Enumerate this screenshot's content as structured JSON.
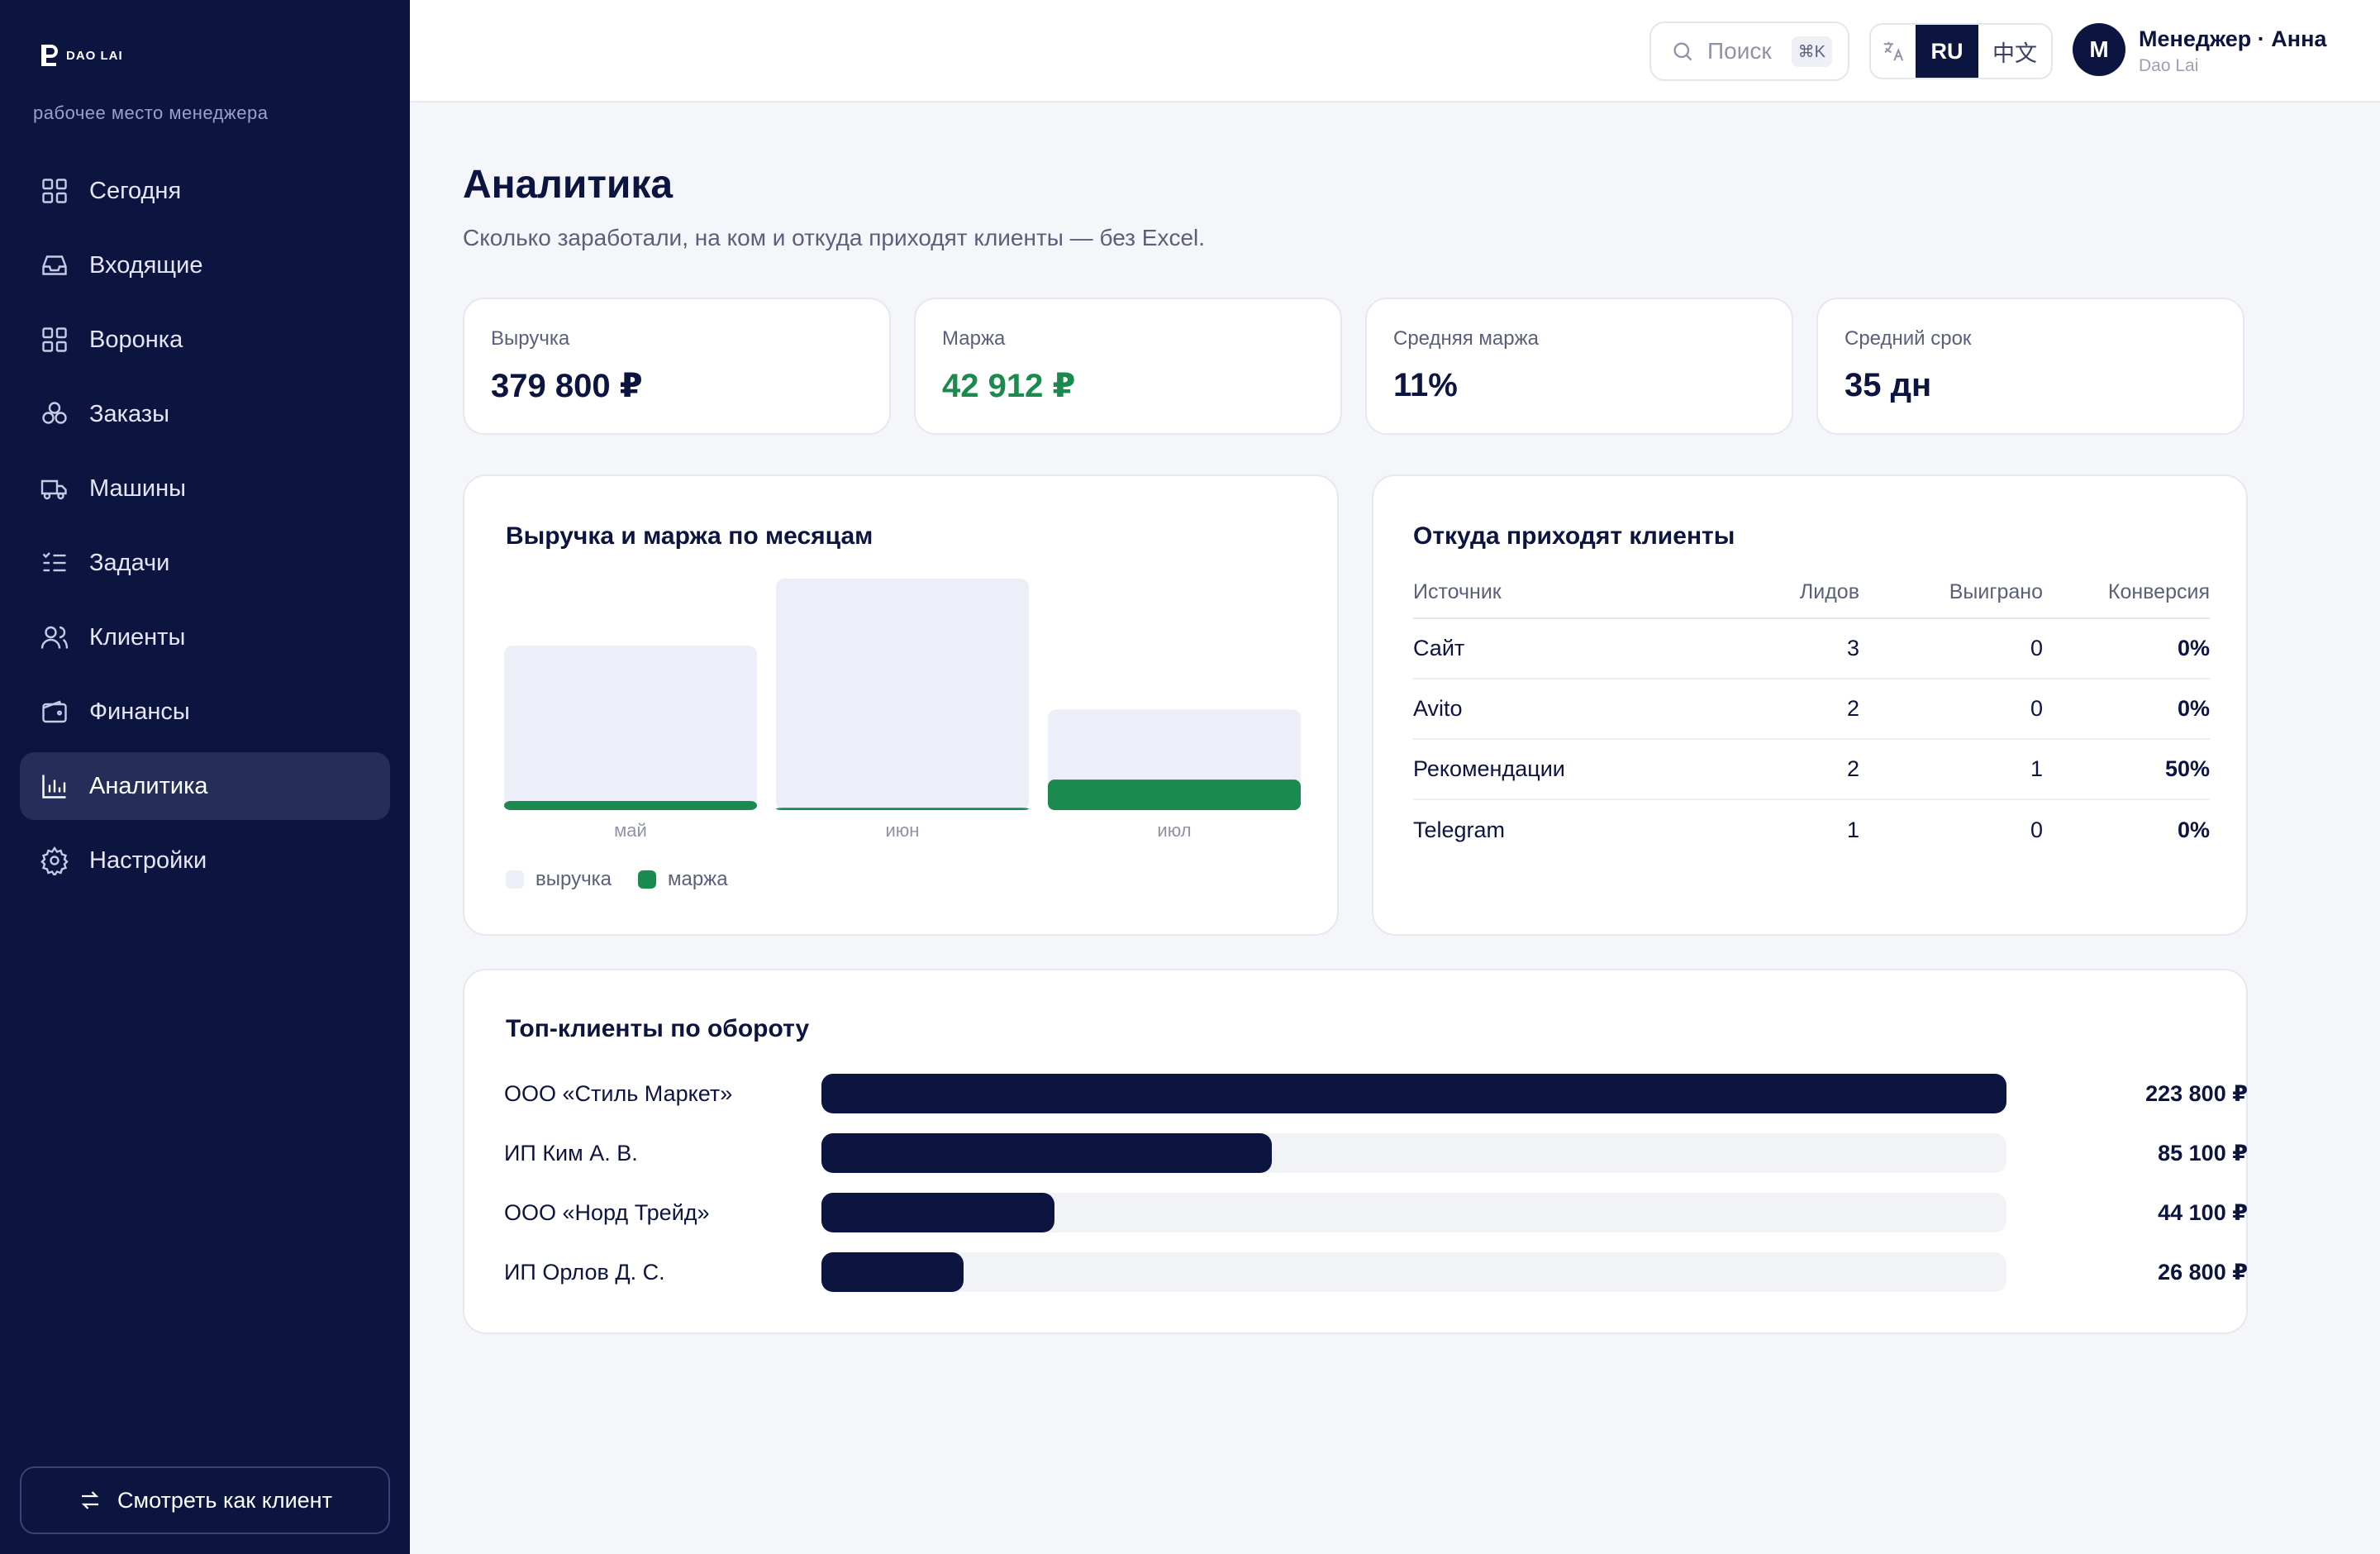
{
  "app": {
    "logo_text": "DAO LAI",
    "subtitle": "рабочее место менеджера"
  },
  "sidebar": {
    "items": [
      {
        "label": "Сегодня",
        "icon": "grid-icon"
      },
      {
        "label": "Входящие",
        "icon": "inbox-icon"
      },
      {
        "label": "Воронка",
        "icon": "grid-icon"
      },
      {
        "label": "Заказы",
        "icon": "boxes-icon"
      },
      {
        "label": "Машины",
        "icon": "truck-icon"
      },
      {
        "label": "Задачи",
        "icon": "checklist-icon"
      },
      {
        "label": "Клиенты",
        "icon": "users-icon"
      },
      {
        "label": "Финансы",
        "icon": "wallet-icon"
      },
      {
        "label": "Аналитика",
        "icon": "bar-chart-icon",
        "active": true
      },
      {
        "label": "Настройки",
        "icon": "gear-icon"
      }
    ],
    "view_as_client": "Смотреть как клиент"
  },
  "header": {
    "search_placeholder": "Поиск",
    "search_shortcut": "⌘K",
    "lang_active": "RU",
    "lang_other": "中文",
    "avatar_letter": "М",
    "user_name": "Менеджер · Анна",
    "user_sub": "Dao Lai"
  },
  "page": {
    "title": "Аналитика",
    "subtitle": "Сколько заработали, на ком и откуда приходят клиенты — без Excel."
  },
  "kpis": [
    {
      "label": "Выручка",
      "value": "379 800 ₽"
    },
    {
      "label": "Маржа",
      "value": "42 912 ₽",
      "accent": true
    },
    {
      "label": "Средняя маржа",
      "value": "11%"
    },
    {
      "label": "Средний срок",
      "value": "35 дн"
    }
  ],
  "revenue_chart": {
    "title": "Выручка и маржа по месяцам",
    "legend_revenue": "выручка",
    "legend_margin": "маржа"
  },
  "chart_data": {
    "type": "bar",
    "categories": [
      "май",
      "июн",
      "июл"
    ],
    "series": [
      {
        "name": "выручка",
        "values": [
          108000,
          152000,
          66000
        ],
        "color": "#eceff8"
      },
      {
        "name": "маржа",
        "values": [
          6000,
          1500,
          20000
        ],
        "color": "#1b8a4e"
      }
    ],
    "ylim": [
      0,
      152000
    ],
    "grid": false,
    "legend": "bottom-left"
  },
  "sources": {
    "title": "Откуда приходят клиенты",
    "columns": [
      "Источник",
      "Лидов",
      "Выиграно",
      "Конверсия"
    ],
    "rows": [
      {
        "source": "Сайт",
        "leads": "3",
        "won": "0",
        "conv": "0%"
      },
      {
        "source": "Avito",
        "leads": "2",
        "won": "0",
        "conv": "0%"
      },
      {
        "source": "Рекомендации",
        "leads": "2",
        "won": "1",
        "conv": "50%"
      },
      {
        "source": "Telegram",
        "leads": "1",
        "won": "0",
        "conv": "0%"
      }
    ]
  },
  "top_clients": {
    "title": "Топ-клиенты по обороту",
    "rows": [
      {
        "name": "ООО «Стиль Маркет»",
        "amount": "223 800 ₽",
        "share": 1.0
      },
      {
        "name": "ИП Ким А. В.",
        "amount": "85 100 ₽",
        "share": 0.38
      },
      {
        "name": "ООО «Норд Трейд»",
        "amount": "44 100 ₽",
        "share": 0.197
      },
      {
        "name": "ИП Орлов Д. С.",
        "amount": "26 800 ₽",
        "share": 0.12
      }
    ]
  },
  "colors": {
    "navy": "#0c1440",
    "green": "#1b8a4e",
    "revenue_bar": "#eceff8"
  }
}
